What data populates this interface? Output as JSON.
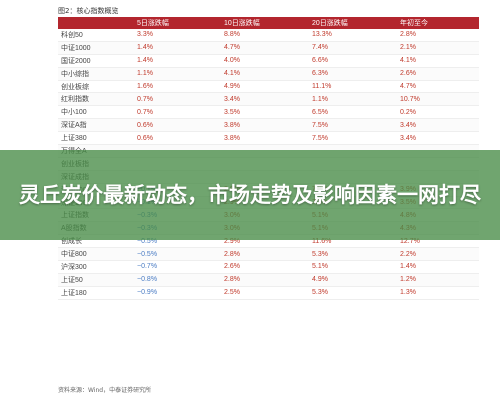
{
  "table_title": "图2：核心指数概览",
  "headers": [
    "",
    "5日涨跌幅",
    "10日涨跌幅",
    "20日涨跌幅",
    "年初至今"
  ],
  "rows": [
    [
      "科创50",
      "3.3%",
      "8.8%",
      "13.3%",
      "2.8%"
    ],
    [
      "中证1000",
      "1.4%",
      "4.7%",
      "7.4%",
      "2.1%"
    ],
    [
      "国证2000",
      "1.4%",
      "4.0%",
      "6.6%",
      "4.1%"
    ],
    [
      "中小综指",
      "1.1%",
      "4.1%",
      "6.3%",
      "2.6%"
    ],
    [
      "创业板综",
      "1.6%",
      "4.9%",
      "11.1%",
      "4.7%"
    ],
    [
      "红利指数",
      "0.7%",
      "3.4%",
      "1.1%",
      "10.7%"
    ],
    [
      "中小100",
      "0.7%",
      "3.5%",
      "6.5%",
      "0.2%"
    ],
    [
      "深证A指",
      "0.6%",
      "3.8%",
      "7.5%",
      "3.4%"
    ],
    [
      "上证380",
      "0.6%",
      "3.8%",
      "7.5%",
      "3.4%"
    ],
    [
      "万得全A",
      "",
      "",
      "",
      ""
    ],
    [
      "创业板指",
      "",
      "",
      "",
      ""
    ],
    [
      "深证成指",
      "",
      "",
      "",
      ""
    ],
    [
      "深创100",
      "−0.1%",
      "2.8%",
      "7.8%",
      "3.9%"
    ],
    [
      "深证100",
      "−0.1%",
      "2.9%",
      "7.5%",
      "3.5%"
    ],
    [
      "上证指数",
      "−0.3%",
      "3.0%",
      "5.1%",
      "4.8%"
    ],
    [
      "A股指数",
      "−0.3%",
      "3.0%",
      "5.1%",
      "4.3%"
    ],
    [
      "创成长",
      "−0.5%",
      "2.9%",
      "11.6%",
      "12.7%"
    ],
    [
      "中证800",
      "−0.5%",
      "2.8%",
      "5.3%",
      "2.2%"
    ],
    [
      "沪深300",
      "−0.7%",
      "2.6%",
      "5.1%",
      "1.4%"
    ],
    [
      "上证50",
      "−0.8%",
      "2.8%",
      "4.9%",
      "1.2%"
    ],
    [
      "上证180",
      "−0.9%",
      "2.5%",
      "5.3%",
      "1.3%"
    ]
  ],
  "source": "资料来源：Wind，中泰证券研究所",
  "overlay_title": "灵丘炭价最新动态，市场走势及影响因素一网打尽"
}
